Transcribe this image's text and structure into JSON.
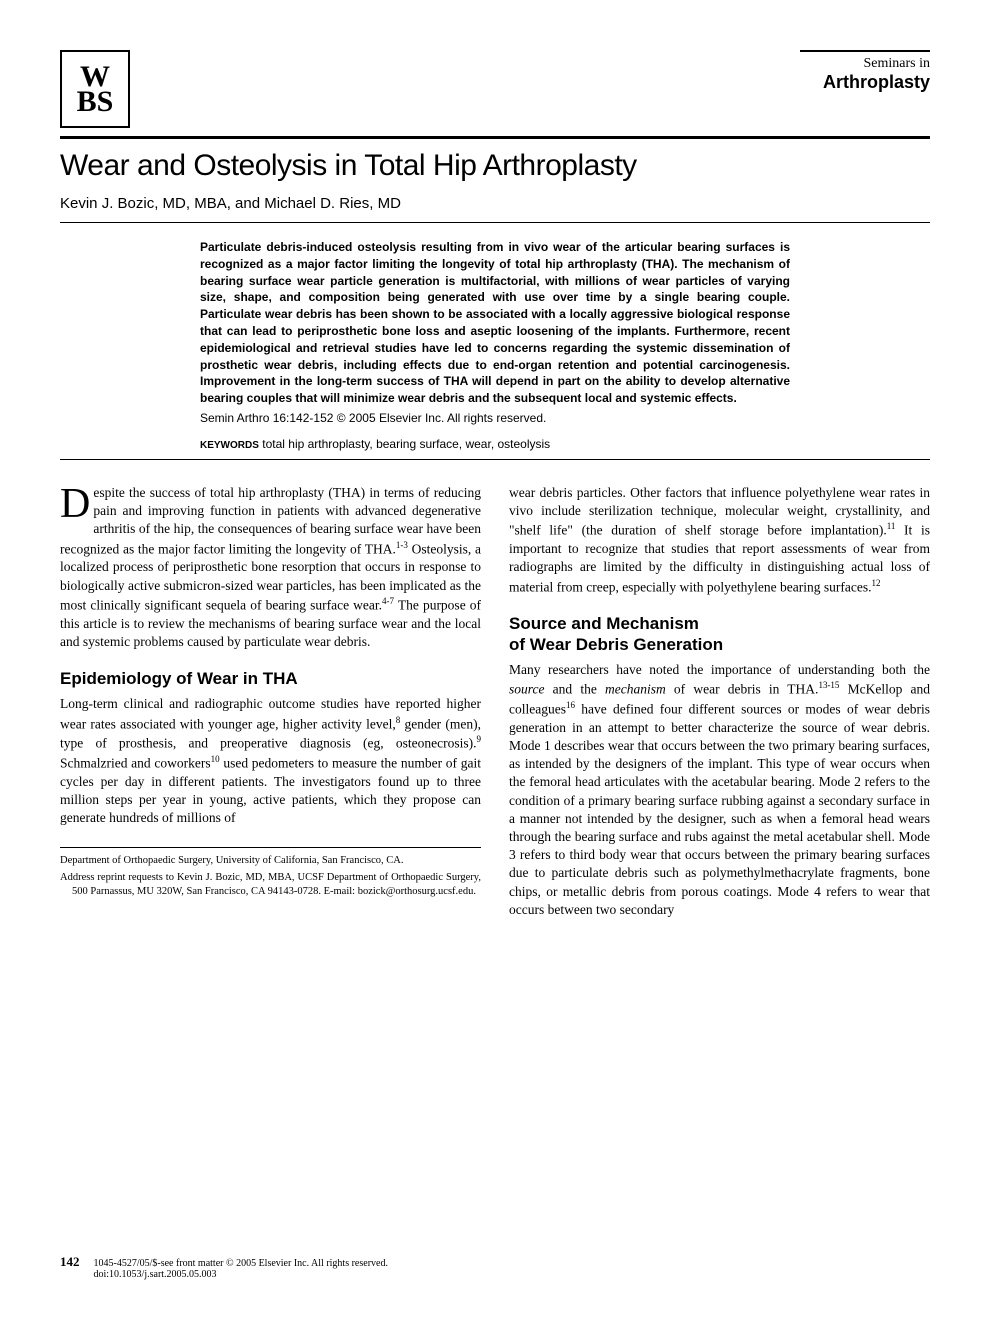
{
  "logo": "W\nBS",
  "journal": {
    "line1": "Seminars in",
    "line2": "Arthroplasty"
  },
  "title": "Wear and Osteolysis in Total Hip Arthroplasty",
  "authors": "Kevin J. Bozic, MD, MBA, and Michael D. Ries, MD",
  "abstract": "Particulate debris-induced osteolysis resulting from in vivo wear of the articular bearing surfaces is recognized as a major factor limiting the longevity of total hip arthroplasty (THA). The mechanism of bearing surface wear particle generation is multifactorial, with millions of wear particles of varying size, shape, and composition being generated with use over time by a single bearing couple. Particulate wear debris has been shown to be associated with a locally aggressive biological response that can lead to periprosthetic bone loss and aseptic loosening of the implants. Furthermore, recent epidemiological and retrieval studies have led to concerns regarding the systemic dissemination of prosthetic wear debris, including effects due to end-organ retention and potential carcinogenesis. Improvement in the long-term success of THA will depend in part on the ability to develop alternative bearing couples that will minimize wear debris and the subsequent local and systemic effects.",
  "citation": "Semin Arthro 16:142-152 © 2005 Elsevier Inc. All rights reserved.",
  "keywords_label": "KEYWORDS",
  "keywords": "total hip arthroplasty, bearing surface, wear, osteolysis",
  "body": {
    "intro_dropcap": "D",
    "intro": "espite the success of total hip arthroplasty (THA) in terms of reducing pain and improving function in patients with advanced degenerative arthritis of the hip, the consequences of bearing surface wear have been recognized as the major factor limiting the longevity of THA.",
    "intro_ref1": "1-3",
    "intro2": " Osteolysis, a localized process of periprosthetic bone resorption that occurs in response to biologically active submicron-sized wear particles, has been implicated as the most clinically significant sequela of bearing surface wear.",
    "intro_ref2": "4-7",
    "intro3": " The purpose of this article is to review the mechanisms of bearing surface wear and the local and systemic problems caused by particulate wear debris.",
    "heading1": "Epidemiology of Wear in THA",
    "epi1": "Long-term clinical and radiographic outcome studies have reported higher wear rates associated with younger age, higher activity level,",
    "epi_ref1": "8",
    "epi2": " gender (men), type of prosthesis, and preoperative diagnosis (eg, osteonecrosis).",
    "epi_ref2": "9",
    "epi3": " Schmalzried and coworkers",
    "epi_ref3": "10",
    "epi4": " used pedometers to measure the number of gait cycles per day in different patients. The investigators found up to three million steps per year in young, active patients, which they propose can generate hundreds of millions of",
    "col2_1": "wear debris particles. Other factors that influence polyethylene wear rates in vivo include sterilization technique, molecular weight, crystallinity, and \"shelf life\" (the duration of shelf storage before implantation).",
    "col2_ref1": "11",
    "col2_2": " It is important to recognize that studies that report assessments of wear from radiographs are limited by the difficulty in distinguishing actual loss of material from creep, especially with polyethylene bearing surfaces.",
    "col2_ref2": "12",
    "heading2a": "Source and Mechanism",
    "heading2b": "of Wear Debris Generation",
    "src1": "Many researchers have noted the importance of understanding both the ",
    "src_italic1": "source",
    "src2": " and the ",
    "src_italic2": "mechanism",
    "src3": " of wear debris in THA.",
    "src_ref1": "13-15",
    "src4": " McKellop and colleagues",
    "src_ref2": "16",
    "src5": " have defined four different sources or modes of wear debris generation in an attempt to better characterize the source of wear debris. Mode 1 describes wear that occurs between the two primary bearing surfaces, as intended by the designers of the implant. This type of wear occurs when the femoral head articulates with the acetabular bearing. Mode 2 refers to the condition of a primary bearing surface rubbing against a secondary surface in a manner not intended by the designer, such as when a femoral head wears through the bearing surface and rubs against the metal acetabular shell. Mode 3 refers to third body wear that occurs between the primary bearing surfaces due to particulate debris such as polymethylmethacrylate fragments, bone chips, or metallic debris from porous coatings. Mode 4 refers to wear that occurs between two secondary"
  },
  "footnotes": {
    "f1": "Department of Orthopaedic Surgery, University of California, San Francisco, CA.",
    "f2": "Address reprint requests to Kevin J. Bozic, MD, MBA, UCSF Department of Orthopaedic Surgery, 500 Parnassus, MU 320W, San Francisco, CA 94143-0728. E-mail: bozick@orthosurg.ucsf.edu."
  },
  "footer": {
    "page": "142",
    "copyright": "1045-4527/05/$-see front matter © 2005 Elsevier Inc. All rights reserved.",
    "doi": "doi:10.1053/j.sart.2005.05.003"
  }
}
